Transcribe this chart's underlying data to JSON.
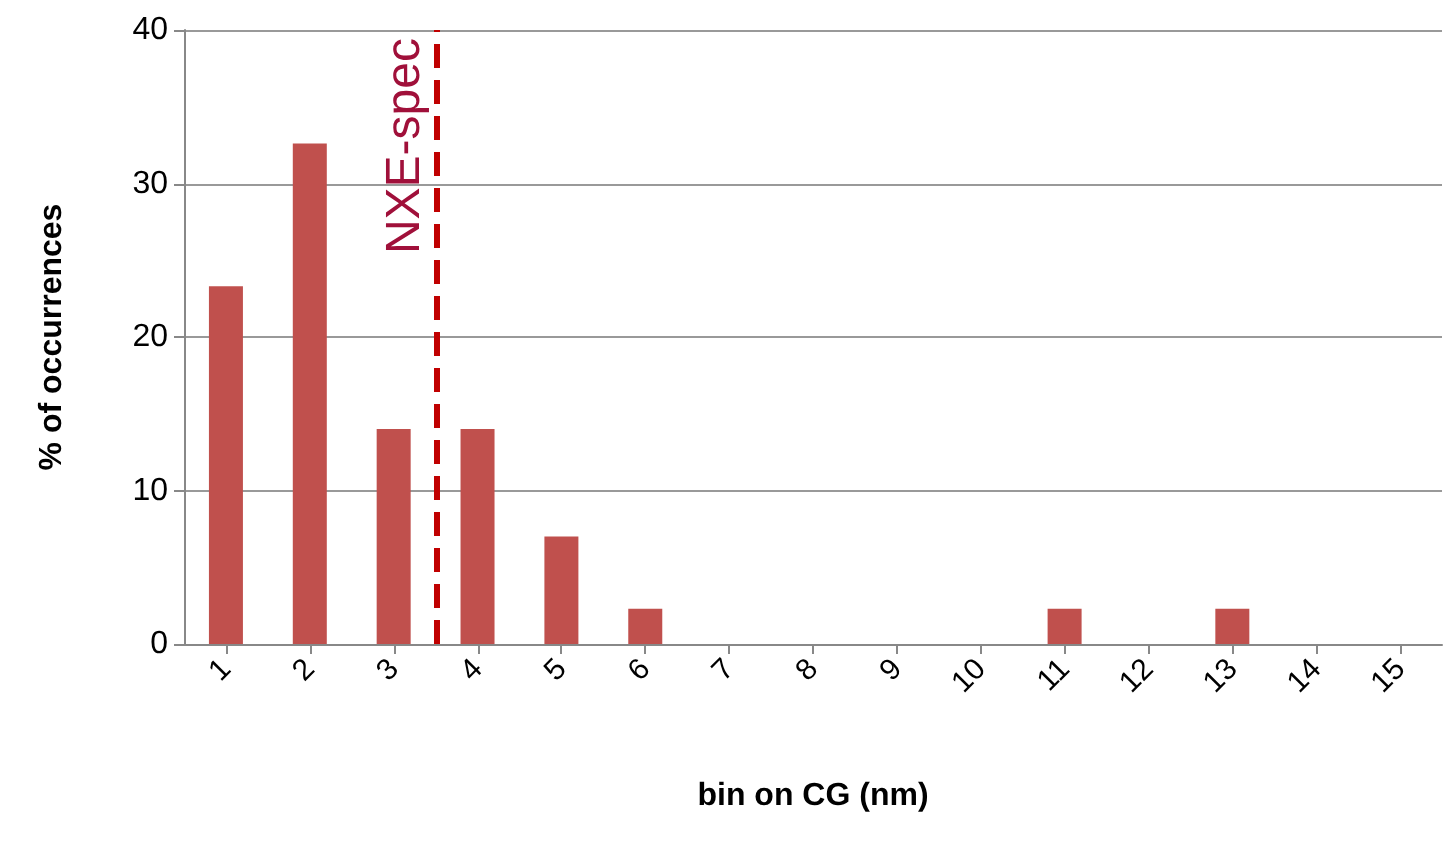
{
  "chart_data": {
    "type": "bar",
    "xlabel": "bin on CG (nm)",
    "ylabel": "% of occurrences",
    "x": [
      1,
      2,
      3,
      4,
      5,
      6,
      7,
      8,
      9,
      10,
      11,
      12,
      13,
      14,
      15
    ],
    "values": [
      23.3,
      32.6,
      14.0,
      14.0,
      7.0,
      2.3,
      0,
      0,
      0,
      0,
      2.3,
      0,
      2.3,
      0,
      0
    ],
    "color": "#c0504d",
    "xlim": [
      0.5,
      15.5
    ],
    "xticks": [
      1,
      2,
      3,
      4,
      5,
      6,
      7,
      8,
      9,
      10,
      11,
      12,
      13,
      14,
      15
    ],
    "ylim": [
      0,
      40
    ],
    "yticks": [
      0,
      10,
      20,
      30,
      40
    ],
    "grid": "y",
    "ref_lines": [
      {
        "axis": "x",
        "value": 3.5,
        "label": "NXE-spec",
        "color": "#c00000",
        "line_style": "dashed"
      }
    ]
  }
}
